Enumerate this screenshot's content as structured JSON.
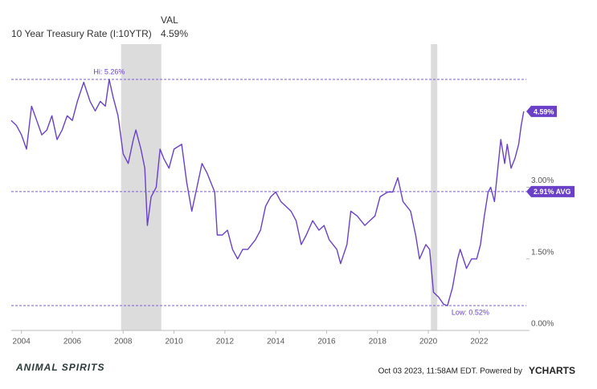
{
  "chart_data": {
    "type": "line",
    "val_header": "VAL",
    "val": "4.59%",
    "x": [
      2003.6,
      2003.8,
      2004.0,
      2004.2,
      2004.4,
      2004.6,
      2004.8,
      2005.0,
      2005.2,
      2005.4,
      2005.6,
      2005.8,
      2006.0,
      2006.2,
      2006.45,
      2006.7,
      2006.9,
      2007.1,
      2007.3,
      2007.45,
      2007.6,
      2007.8,
      2008.0,
      2008.2,
      2008.4,
      2008.5,
      2008.7,
      2008.85,
      2008.95,
      2009.1,
      2009.3,
      2009.45,
      2009.6,
      2009.8,
      2010.0,
      2010.3,
      2010.5,
      2010.7,
      2010.9,
      2011.1,
      2011.3,
      2011.6,
      2011.7,
      2011.9,
      2012.1,
      2012.3,
      2012.5,
      2012.7,
      2012.9,
      2013.2,
      2013.4,
      2013.6,
      2013.8,
      2014.0,
      2014.2,
      2014.4,
      2014.6,
      2014.8,
      2015.0,
      2015.2,
      2015.45,
      2015.7,
      2015.9,
      2016.1,
      2016.4,
      2016.55,
      2016.8,
      2016.95,
      2017.2,
      2017.5,
      2017.7,
      2017.9,
      2018.1,
      2018.4,
      2018.6,
      2018.8,
      2019.0,
      2019.3,
      2019.5,
      2019.65,
      2019.9,
      2020.05,
      2020.2,
      2020.4,
      2020.6,
      2020.75,
      2020.95,
      2021.15,
      2021.25,
      2021.5,
      2021.7,
      2021.9,
      2022.05,
      2022.2,
      2022.35,
      2022.45,
      2022.6,
      2022.75,
      2022.85,
      2023.0,
      2023.1,
      2023.25,
      2023.4,
      2023.55,
      2023.65,
      2023.75
    ],
    "series": [
      {
        "name": "10 Year Treasury Rate (I:10YTR)",
        "color": "#6a40c8",
        "values": [
          4.4,
          4.3,
          4.1,
          3.8,
          4.7,
          4.4,
          4.1,
          4.2,
          4.5,
          4.0,
          4.2,
          4.5,
          4.4,
          4.8,
          5.2,
          4.8,
          4.6,
          4.8,
          4.7,
          5.26,
          4.9,
          4.5,
          3.7,
          3.5,
          4.0,
          4.2,
          3.8,
          3.4,
          2.2,
          2.8,
          3.0,
          3.8,
          3.6,
          3.4,
          3.8,
          3.9,
          3.1,
          2.5,
          3.0,
          3.5,
          3.3,
          2.9,
          2.0,
          2.0,
          2.1,
          1.7,
          1.5,
          1.7,
          1.7,
          1.9,
          2.1,
          2.6,
          2.8,
          2.9,
          2.7,
          2.6,
          2.5,
          2.3,
          1.8,
          2.0,
          2.3,
          2.1,
          2.2,
          1.9,
          1.7,
          1.4,
          1.8,
          2.5,
          2.4,
          2.2,
          2.3,
          2.4,
          2.8,
          2.9,
          2.9,
          3.2,
          2.7,
          2.5,
          2.0,
          1.5,
          1.8,
          1.7,
          0.8,
          0.7,
          0.55,
          0.52,
          0.9,
          1.5,
          1.7,
          1.3,
          1.5,
          1.5,
          1.8,
          2.4,
          2.9,
          3.0,
          2.7,
          3.5,
          4.0,
          3.5,
          3.9,
          3.4,
          3.6,
          3.9,
          4.3,
          4.59
        ]
      }
    ],
    "xlim": [
      2003.6,
      2023.85
    ],
    "ylim": [
      0,
      6
    ],
    "xticks": [
      2004,
      2006,
      2008,
      2010,
      2012,
      2014,
      2016,
      2018,
      2020,
      2022
    ],
    "yticks": [
      {
        "value": 0,
        "label": "0.00%"
      },
      {
        "value": 1.5,
        "label": "1.50%"
      },
      {
        "value": 3,
        "label": "3.00%"
      }
    ],
    "shaded_periods": [
      [
        2007.92,
        2009.5
      ],
      [
        2020.1,
        2020.35
      ]
    ],
    "reference_lines": [
      {
        "value": 5.26,
        "label": "Hi: 5.26%"
      },
      {
        "value": 2.91,
        "label": "2.91% AVG"
      },
      {
        "value": 0.52,
        "label": "Low: 0.52%"
      }
    ],
    "last_value_label": "4.59%",
    "footer_timestamp": "Oct 03 2023, 11:58AM EDT. Powered by",
    "footer_brand": "YCHARTS",
    "watermark": "ANIMAL SPIRITS"
  }
}
